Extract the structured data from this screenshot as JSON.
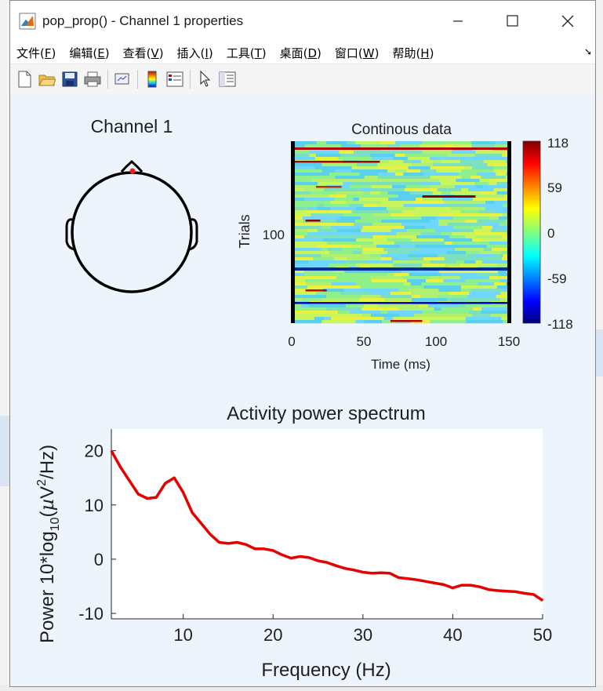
{
  "window": {
    "title": "pop_prop() - Channel 1 properties",
    "controls": [
      "minimize",
      "maximize",
      "close"
    ]
  },
  "menu": [
    {
      "label": "文件(",
      "key": "F",
      "end": ")"
    },
    {
      "label": "编辑(",
      "key": "E",
      "end": ")"
    },
    {
      "label": "查看(",
      "key": "V",
      "end": ")"
    },
    {
      "label": "插入(",
      "key": "I",
      "end": ")"
    },
    {
      "label": "工具(",
      "key": "T",
      "end": ")"
    },
    {
      "label": "桌面(",
      "key": "D",
      "end": ")"
    },
    {
      "label": "窗口(",
      "key": "W",
      "end": ")"
    },
    {
      "label": "帮助(",
      "key": "H",
      "end": ")"
    }
  ],
  "toolbar": [
    "new-figure-icon",
    "open-file-icon",
    "save-icon",
    "print-icon",
    "link-plot-icon",
    "colorbar-icon",
    "legend-icon",
    "pointer-icon",
    "property-inspector-icon"
  ],
  "topo": {
    "title": "Channel 1"
  },
  "erpimage": {
    "title": "Continous data",
    "ylabel": "Trials",
    "ytick": "100",
    "xlabel": "Time (ms)",
    "xticks": [
      "0",
      "50",
      "100",
      "150"
    ],
    "colorbar_ticks": [
      "118",
      "59",
      "0",
      "-59",
      "-118"
    ]
  },
  "spectrum": {
    "title": "Activity power spectrum",
    "ylabel_parts": [
      "Power 10*log",
      "10",
      "(",
      "µ",
      "V",
      "2",
      "/Hz)"
    ],
    "xlabel": "Frequency (Hz)",
    "color": "#e60000"
  },
  "chart_data": {
    "type": "line",
    "title": "Activity power spectrum",
    "xlabel": "Frequency (Hz)",
    "ylabel": "Power 10*log10(µV²/Hz)",
    "xlim": [
      2,
      50
    ],
    "ylim": [
      -11,
      24
    ],
    "xticks": [
      10,
      20,
      30,
      40,
      50
    ],
    "yticks": [
      -10,
      0,
      10,
      20
    ],
    "x": [
      2,
      3,
      4,
      5,
      6,
      7,
      8,
      9,
      10,
      11,
      12,
      13,
      14,
      15,
      16,
      17,
      18,
      19,
      20,
      21,
      22,
      23,
      24,
      25,
      26,
      27,
      28,
      29,
      30,
      31,
      32,
      33,
      34,
      35,
      36,
      37,
      38,
      39,
      40,
      41,
      42,
      43,
      44,
      45,
      46,
      47,
      48,
      49,
      50
    ],
    "values": [
      20,
      17,
      14.5,
      12,
      11.2,
      11.4,
      14,
      15,
      12.3,
      8.6,
      6.6,
      4.6,
      3.1,
      2.9,
      3.1,
      2.7,
      1.9,
      1.9,
      1.6,
      0.8,
      0.2,
      0.5,
      0.3,
      -0.3,
      -0.6,
      -1.2,
      -1.7,
      -2,
      -2.4,
      -2.6,
      -2.5,
      -2.6,
      -3.4,
      -3.6,
      -3.8,
      -4.1,
      -4.4,
      -4.7,
      -5.3,
      -4.8,
      -4.8,
      -5.1,
      -5.6,
      -5.8,
      -5.9,
      -6,
      -6.3,
      -6.5,
      -7.6
    ],
    "series_color": "#e60000",
    "grid": false
  }
}
